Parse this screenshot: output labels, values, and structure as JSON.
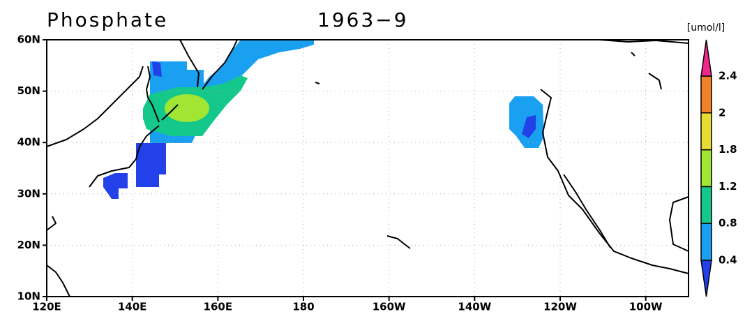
{
  "title": "Phosphate",
  "date": "1963−9",
  "unit": "[umol/l]",
  "map": {
    "lon_labels": [
      "120E",
      "140E",
      "160E",
      "180",
      "160W",
      "140W",
      "120W",
      "100W"
    ],
    "lat_labels": [
      "10N",
      "20N",
      "30N",
      "40N",
      "50N",
      "60N"
    ]
  },
  "colorbar": {
    "labels": [
      "0.4",
      "0.8",
      "1.2",
      "1.8",
      "2",
      "2.4"
    ],
    "colors": [
      "#2341e8",
      "#1aa0f0",
      "#14c88c",
      "#a0e632",
      "#e6dc32",
      "#f08228",
      "#f0288c"
    ]
  }
}
